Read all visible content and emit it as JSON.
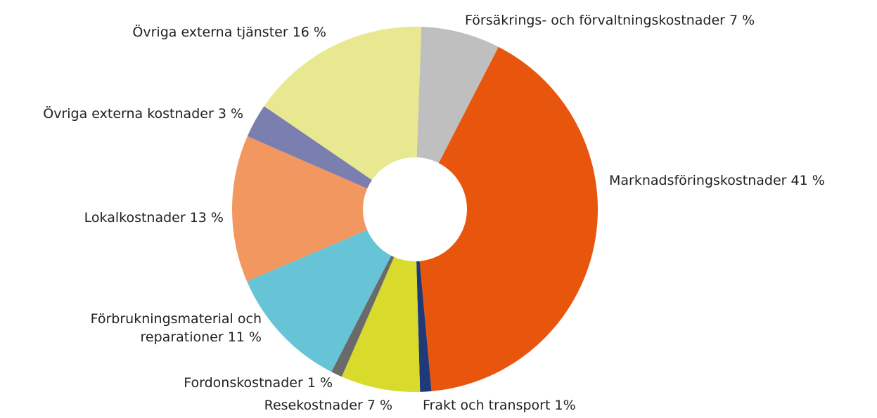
{
  "chart_data": {
    "type": "pie",
    "categories": [
      "Försäkrings- och förvaltningskostnader",
      "Marknadsföringskostnader",
      "Frakt och transport",
      "Resekostnader",
      "Fordonskostnader",
      "Förbrukningsmaterial och reparationer",
      "Lokalkostnader",
      "Övriga externa kostnader",
      "Övriga externa tjänster"
    ],
    "values": [
      7,
      41,
      1,
      7,
      1,
      11,
      13,
      3,
      16
    ],
    "value_labels": [
      "7 %",
      "41 %",
      "1%",
      "7 %",
      "1 %",
      "11 %",
      "13 %",
      "3 %",
      "16 %"
    ],
    "colors": [
      "#bfbfbf",
      "#e8560e",
      "#1f3a78",
      "#d8da2c",
      "#6a6a6a",
      "#67c4d6",
      "#f2975f",
      "#7b7fb0",
      "#e8e891"
    ],
    "donut": true
  }
}
